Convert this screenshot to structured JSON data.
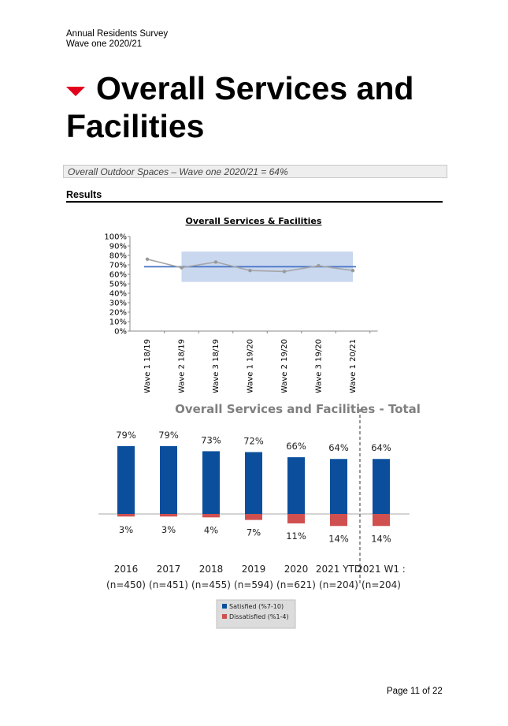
{
  "header": {
    "line1": "Annual Residents Survey",
    "line2": "Wave one 2020/21"
  },
  "title": {
    "icon": "red-down-triangle-icon",
    "line1": "Overall Services and",
    "line2": "Facilities",
    "accent_color": "#e3001b"
  },
  "subtitle_box": "Overall Outdoor Spaces – Wave one 2020/21 = 64%",
  "section_heading": "Results",
  "footer": {
    "page": "Page 11 of 22"
  },
  "chart_data": [
    {
      "type": "line",
      "title": "Overall Services & Facilities",
      "categories": [
        "Wave 1 18/19",
        "Wave 2 18/19",
        "Wave 3 18/19",
        "Wave 1 19/20",
        "Wave 2 19/20",
        "Wave 3 19/20",
        "Wave 1 20/21"
      ],
      "series": [
        {
          "values": [
            76,
            67,
            73,
            64,
            63,
            69,
            64
          ],
          "color": "#a6a6a6"
        }
      ],
      "reference_line": {
        "value": 68,
        "color": "#4472c4"
      },
      "band": {
        "low": 52,
        "high": 84,
        "color": "#c9d7ef"
      },
      "yticks": [
        "0%",
        "10%",
        "20%",
        "30%",
        "40%",
        "50%",
        "60%",
        "70%",
        "80%",
        "90%",
        "100%"
      ],
      "ylim": [
        0,
        100
      ]
    },
    {
      "type": "bar",
      "title": "Overall Services and Facilities - Total",
      "categories": [
        "2016",
        "2017",
        "2018",
        "2019",
        "2020",
        "2021 YTD",
        "2021 W1 :"
      ],
      "sublabels": [
        "(n=450)",
        "(n=451)",
        "(n=455)",
        "(n=594)",
        "(n=621)",
        "(n=204)",
        "(n=204)"
      ],
      "series": [
        {
          "name": "Satisfied (%7-10)",
          "values": [
            79,
            79,
            73,
            72,
            66,
            64,
            64
          ],
          "color": "#0b4f9c"
        },
        {
          "name": "Dissatisfied (%1-4)",
          "values": [
            3,
            3,
            4,
            7,
            11,
            14,
            14
          ],
          "color": "#d05050"
        }
      ],
      "value_labels_satisfied": [
        "79%",
        "79%",
        "73%",
        "72%",
        "66%",
        "64%",
        "64%"
      ],
      "value_labels_dissatisfied": [
        "3%",
        "3%",
        "4%",
        "7%",
        "11%",
        "14%",
        "14%"
      ],
      "divider_after_index": 5,
      "legend_placement": "bottom"
    }
  ]
}
